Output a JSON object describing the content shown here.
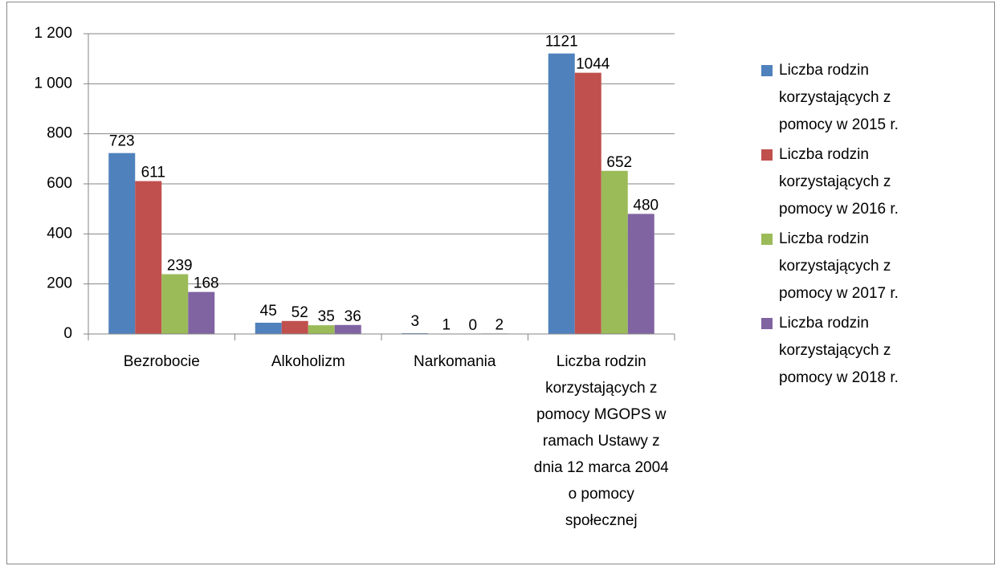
{
  "chart_data": {
    "type": "bar",
    "categories": [
      "Bezrobocie",
      "Alkoholizm",
      "Narkomania",
      "Liczba rodzin korzystających z pomocy MGOPS w ramach Ustawy z dnia 12 marca 2004 o pomocy społecznej"
    ],
    "series": [
      {
        "name": "Liczba rodzin korzystających z pomocy w 2015 r.",
        "color": "#4f81bd",
        "values": [
          723,
          45,
          3,
          1121
        ]
      },
      {
        "name": "Liczba rodzin korzystających z pomocy w 2016 r.",
        "color": "#c0504d",
        "values": [
          611,
          52,
          1,
          1044
        ]
      },
      {
        "name": "Liczba rodzin korzystających z pomocy w 2017 r.",
        "color": "#9bbb59",
        "values": [
          239,
          35,
          0,
          652
        ]
      },
      {
        "name": "Liczba rodzin korzystających z pomocy w 2018 r.",
        "color": "#8064a2",
        "values": [
          168,
          36,
          2,
          480
        ]
      }
    ],
    "ylim": [
      0,
      1200
    ],
    "yticks": [
      0,
      200,
      400,
      600,
      800,
      {
        "value": 1000,
        "label": "1 000"
      },
      {
        "value": 1200,
        "label": "1 200"
      }
    ],
    "grid": true,
    "legend": "right"
  }
}
